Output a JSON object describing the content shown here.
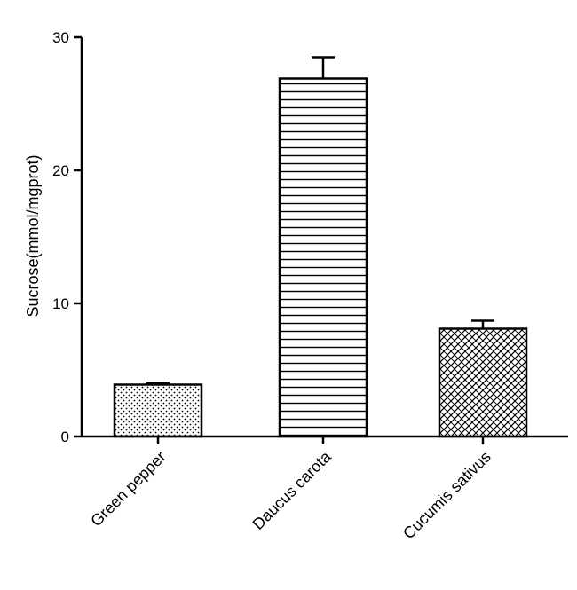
{
  "chart_data": {
    "type": "bar",
    "categories": [
      "Green pepper",
      "Daucus carota",
      "Cucumis sativus"
    ],
    "values": [
      3.9,
      26.9,
      8.1
    ],
    "errors": [
      0.1,
      1.6,
      0.6
    ],
    "patterns": [
      "dots",
      "horizontal-lines",
      "crosshatch"
    ],
    "title": "",
    "xlabel": "",
    "ylabel": "Sucrose(mmol/mgprot)",
    "ylim": [
      0,
      30
    ],
    "yticks": [
      0,
      10,
      20,
      30
    ],
    "grid": false,
    "colors": {
      "axis": "#000000",
      "bar_fill": "#ffffff",
      "bar_stroke": "#000000"
    }
  }
}
